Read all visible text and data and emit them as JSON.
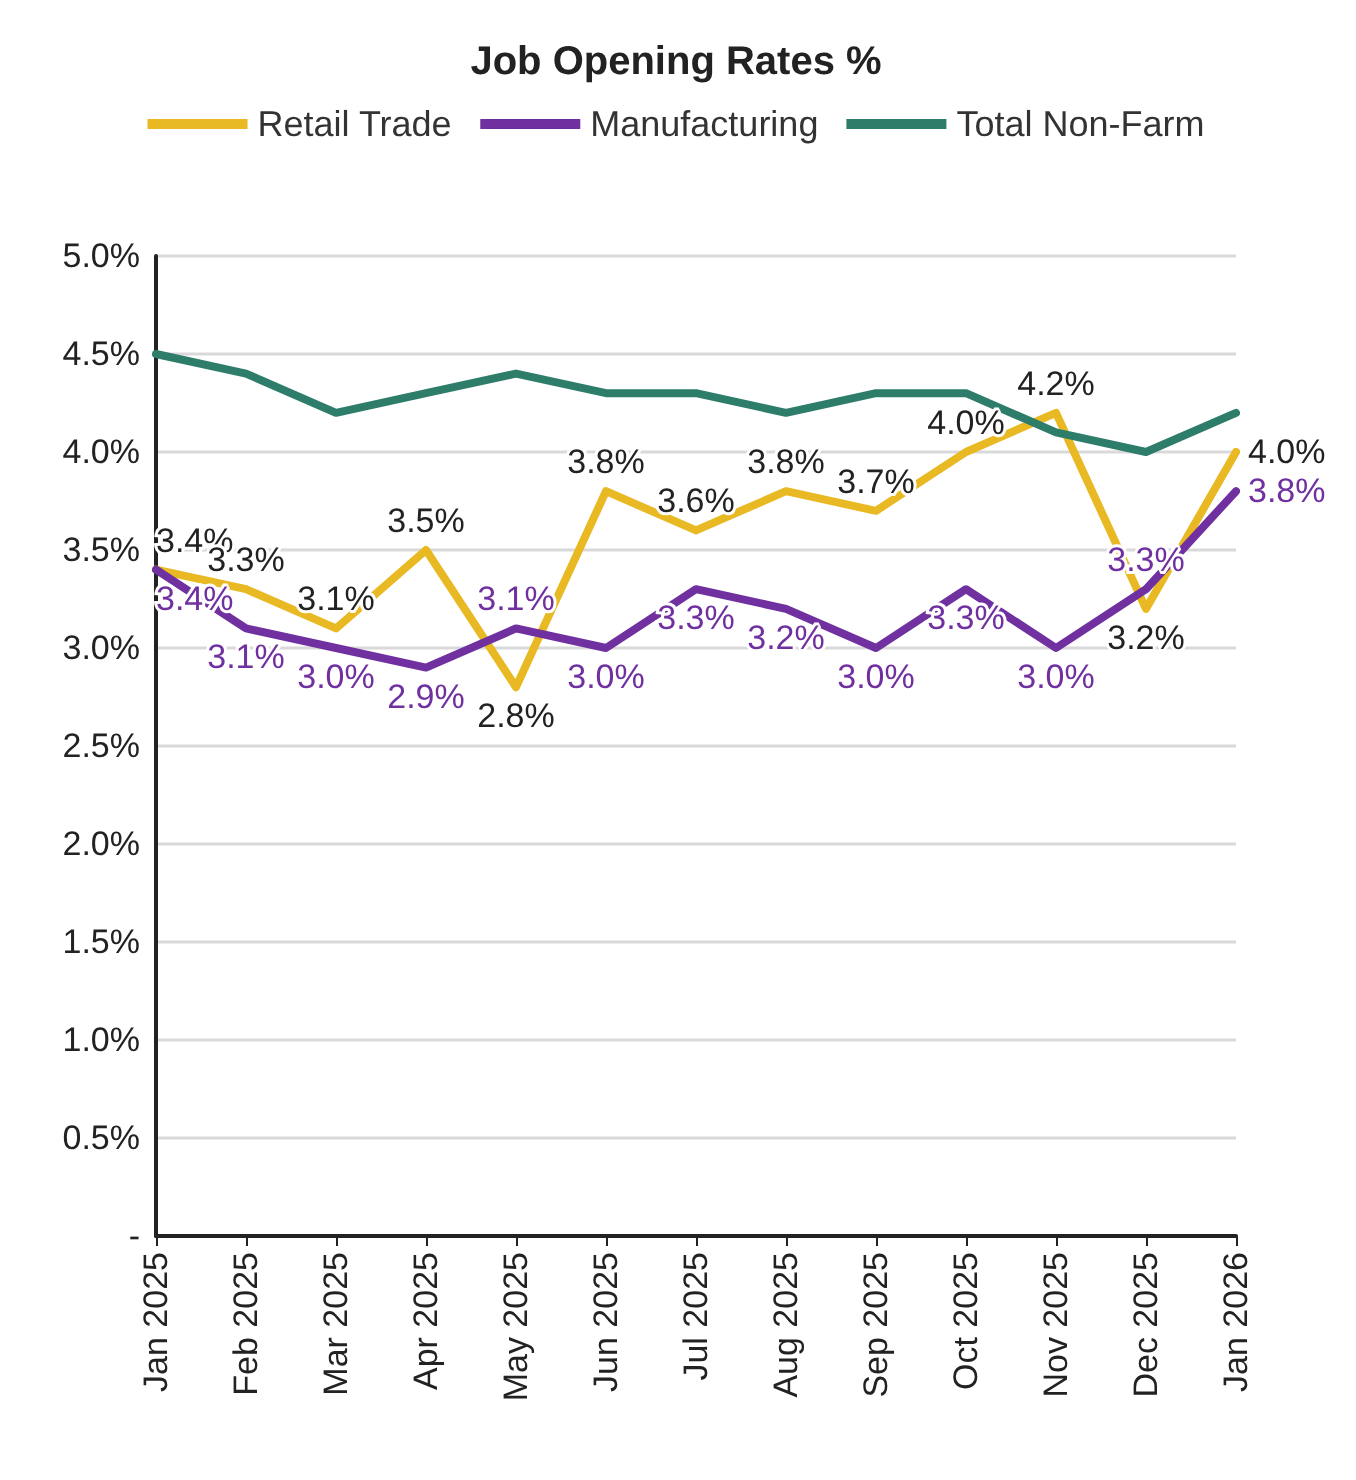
{
  "chart_data": {
    "type": "line",
    "title": "Job Opening Rates %",
    "categories": [
      "Jan 2025",
      "Feb 2025",
      "Mar 2025",
      "Apr 2025",
      "May 2025",
      "Jun 2025",
      "Jul 2025",
      "Aug 2025",
      "Sep 2025",
      "Oct 2025",
      "Nov 2025",
      "Dec 2025",
      "Jan 2026"
    ],
    "series": [
      {
        "name": "Retail Trade",
        "color": "#e8b923",
        "values": [
          3.4,
          3.3,
          3.1,
          3.5,
          2.8,
          3.8,
          3.6,
          3.8,
          3.7,
          4.0,
          4.2,
          3.2,
          4.0
        ],
        "value_labels": [
          "3.4%",
          "3.3%",
          "3.1%",
          "3.5%",
          "2.8%",
          "3.8%",
          "3.6%",
          "3.8%",
          "3.7%",
          "4.0%",
          "4.2%",
          "3.2%",
          "4.0%"
        ]
      },
      {
        "name": "Manufacturing",
        "color": "#7030a0",
        "values": [
          3.4,
          3.1,
          3.0,
          2.9,
          3.1,
          3.0,
          3.3,
          3.2,
          3.0,
          3.3,
          3.0,
          3.3,
          3.8
        ],
        "value_labels": [
          "3.4%",
          "3.1%",
          "3.0%",
          "2.9%",
          "3.1%",
          "3.0%",
          "3.3%",
          "3.2%",
          "3.0%",
          "3.3%",
          "3.0%",
          "3.3%",
          "3.8%"
        ]
      },
      {
        "name": "Total Non-Farm",
        "color": "#2e7d6b",
        "values": [
          4.5,
          4.4,
          4.2,
          4.3,
          4.4,
          4.3,
          4.3,
          4.2,
          4.3,
          4.3,
          4.1,
          4.0,
          4.2
        ]
      }
    ],
    "ylim": [
      0,
      5
    ],
    "yticks": [
      {
        "value": 0,
        "label": "-"
      },
      {
        "value": 0.5,
        "label": "0.5%"
      },
      {
        "value": 1,
        "label": "1.0%"
      },
      {
        "value": 1.5,
        "label": "1.5%"
      },
      {
        "value": 2,
        "label": "2.0%"
      },
      {
        "value": 2.5,
        "label": "2.5%"
      },
      {
        "value": 3,
        "label": "3.0%"
      },
      {
        "value": 3.5,
        "label": "3.5%"
      },
      {
        "value": 4,
        "label": "4.0%"
      },
      {
        "value": 4.5,
        "label": "4.5%"
      },
      {
        "value": 5,
        "label": "5.0%"
      }
    ],
    "grid": "y",
    "legend": "top",
    "marker": "none",
    "line_style": "solid"
  }
}
